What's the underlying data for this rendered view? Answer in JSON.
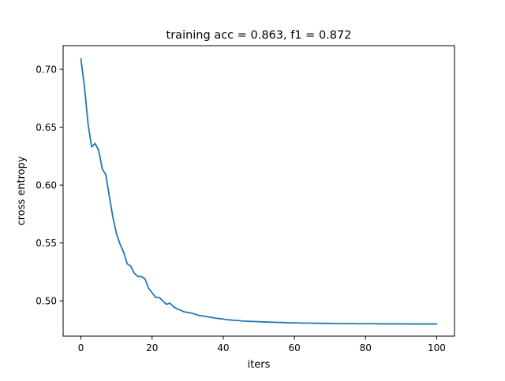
{
  "chart_data": {
    "type": "line",
    "title": "training acc = 0.863, f1 = 0.872",
    "xlabel": "iters",
    "ylabel": "cross entropy",
    "xlim": [
      -5,
      105
    ],
    "ylim": [
      0.4695,
      0.7205
    ],
    "xticks": [
      0,
      20,
      40,
      60,
      80,
      100
    ],
    "xtick_labels": [
      "0",
      "20",
      "40",
      "60",
      "80",
      "100"
    ],
    "yticks": [
      0.5,
      0.55,
      0.6,
      0.65,
      0.7
    ],
    "ytick_labels": [
      "0.50",
      "0.55",
      "0.60",
      "0.65",
      "0.70"
    ],
    "grid": false,
    "series": [
      {
        "color": "#1f77b4",
        "x": [
          0,
          1,
          2,
          3,
          4,
          5,
          6,
          7,
          8,
          9,
          10,
          11,
          12,
          13,
          14,
          15,
          16,
          17,
          18,
          19,
          20,
          21,
          22,
          23,
          24,
          25,
          26,
          27,
          28,
          29,
          30,
          31,
          32,
          33,
          34,
          35,
          36,
          37,
          38,
          39,
          40,
          41,
          42,
          43,
          44,
          45,
          46,
          47,
          48,
          49,
          50,
          51,
          52,
          53,
          54,
          55,
          56,
          57,
          58,
          59,
          60,
          61,
          62,
          63,
          64,
          65,
          66,
          67,
          68,
          69,
          70,
          71,
          72,
          73,
          74,
          75,
          76,
          77,
          78,
          79,
          80,
          81,
          82,
          83,
          84,
          85,
          86,
          87,
          88,
          89,
          90,
          91,
          92,
          93,
          94,
          95,
          96,
          97,
          98,
          99,
          100
        ],
        "y": [
          0.709,
          0.685,
          0.653,
          0.633,
          0.636,
          0.63,
          0.614,
          0.609,
          0.59,
          0.572,
          0.558,
          0.549,
          0.542,
          0.532,
          0.53,
          0.524,
          0.521,
          0.521,
          0.519,
          0.511,
          0.507,
          0.503,
          0.503,
          0.5,
          0.497,
          0.498,
          0.495,
          0.493,
          0.492,
          0.4905,
          0.49,
          0.4895,
          0.4885,
          0.4875,
          0.487,
          0.4866,
          0.486,
          0.4855,
          0.485,
          0.4846,
          0.4842,
          0.4838,
          0.4835,
          0.4832,
          0.483,
          0.4827,
          0.4825,
          0.4823,
          0.4822,
          0.4821,
          0.482,
          0.4818,
          0.4817,
          0.4816,
          0.4815,
          0.4814,
          0.4813,
          0.4812,
          0.4811,
          0.481,
          0.481,
          0.4809,
          0.4808,
          0.4808,
          0.4807,
          0.4807,
          0.4806,
          0.4806,
          0.4805,
          0.4805,
          0.4805,
          0.4804,
          0.4804,
          0.4804,
          0.4803,
          0.4803,
          0.4803,
          0.4803,
          0.4802,
          0.4802,
          0.4802,
          0.4802,
          0.4802,
          0.4802,
          0.4801,
          0.4801,
          0.4801,
          0.4801,
          0.4801,
          0.4801,
          0.4801,
          0.4801,
          0.48,
          0.48,
          0.48,
          0.48,
          0.48,
          0.48,
          0.48,
          0.48,
          0.48
        ]
      }
    ]
  }
}
